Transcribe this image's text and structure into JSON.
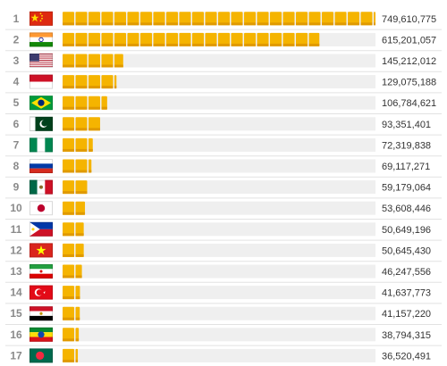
{
  "chart_data": {
    "type": "bar",
    "orientation": "horizontal",
    "title": "",
    "xlabel": "",
    "ylabel": "",
    "grid": false,
    "legend": "none",
    "xlim": [
      0,
      749610775
    ],
    "rows": [
      {
        "rank": "1",
        "flag": "china-flag-icon",
        "value": 749610775,
        "label": "749,610,775"
      },
      {
        "rank": "2",
        "flag": "india-flag-icon",
        "value": 615201057,
        "label": "615,201,057"
      },
      {
        "rank": "3",
        "flag": "usa-flag-icon",
        "value": 145212012,
        "label": "145,212,012"
      },
      {
        "rank": "4",
        "flag": "indonesia-flag-icon",
        "value": 129075188,
        "label": "129,075,188"
      },
      {
        "rank": "5",
        "flag": "brazil-flag-icon",
        "value": 106784621,
        "label": "106,784,621"
      },
      {
        "rank": "6",
        "flag": "pakistan-flag-icon",
        "value": 93351401,
        "label": "93,351,401"
      },
      {
        "rank": "7",
        "flag": "nigeria-flag-icon",
        "value": 72319838,
        "label": "72,319,838"
      },
      {
        "rank": "8",
        "flag": "russia-flag-icon",
        "value": 69117271,
        "label": "69,117,271"
      },
      {
        "rank": "9",
        "flag": "mexico-flag-icon",
        "value": 59179064,
        "label": "59,179,064"
      },
      {
        "rank": "10",
        "flag": "japan-flag-icon",
        "value": 53608446,
        "label": "53,608,446"
      },
      {
        "rank": "11",
        "flag": "philippines-flag-icon",
        "value": 50649196,
        "label": "50,649,196"
      },
      {
        "rank": "12",
        "flag": "vietnam-flag-icon",
        "value": 50645430,
        "label": "50,645,430"
      },
      {
        "rank": "13",
        "flag": "iran-flag-icon",
        "value": 46247556,
        "label": "46,247,556"
      },
      {
        "rank": "14",
        "flag": "turkey-flag-icon",
        "value": 41637773,
        "label": "41,637,773"
      },
      {
        "rank": "15",
        "flag": "egypt-flag-icon",
        "value": 41157220,
        "label": "41,157,220"
      },
      {
        "rank": "16",
        "flag": "ethiopia-flag-icon",
        "value": 38794315,
        "label": "38,794,315"
      },
      {
        "rank": "17",
        "flag": "bangladesh-flag-icon",
        "value": 36520491,
        "label": "36,520,491"
      }
    ]
  },
  "colors": {
    "bar": "#f5b400",
    "bar_dark": "#e09a00",
    "track": "#efefef",
    "row_separator": "#e2e2e2",
    "rank_text": "#8a8a8a",
    "value_text": "#333333"
  }
}
